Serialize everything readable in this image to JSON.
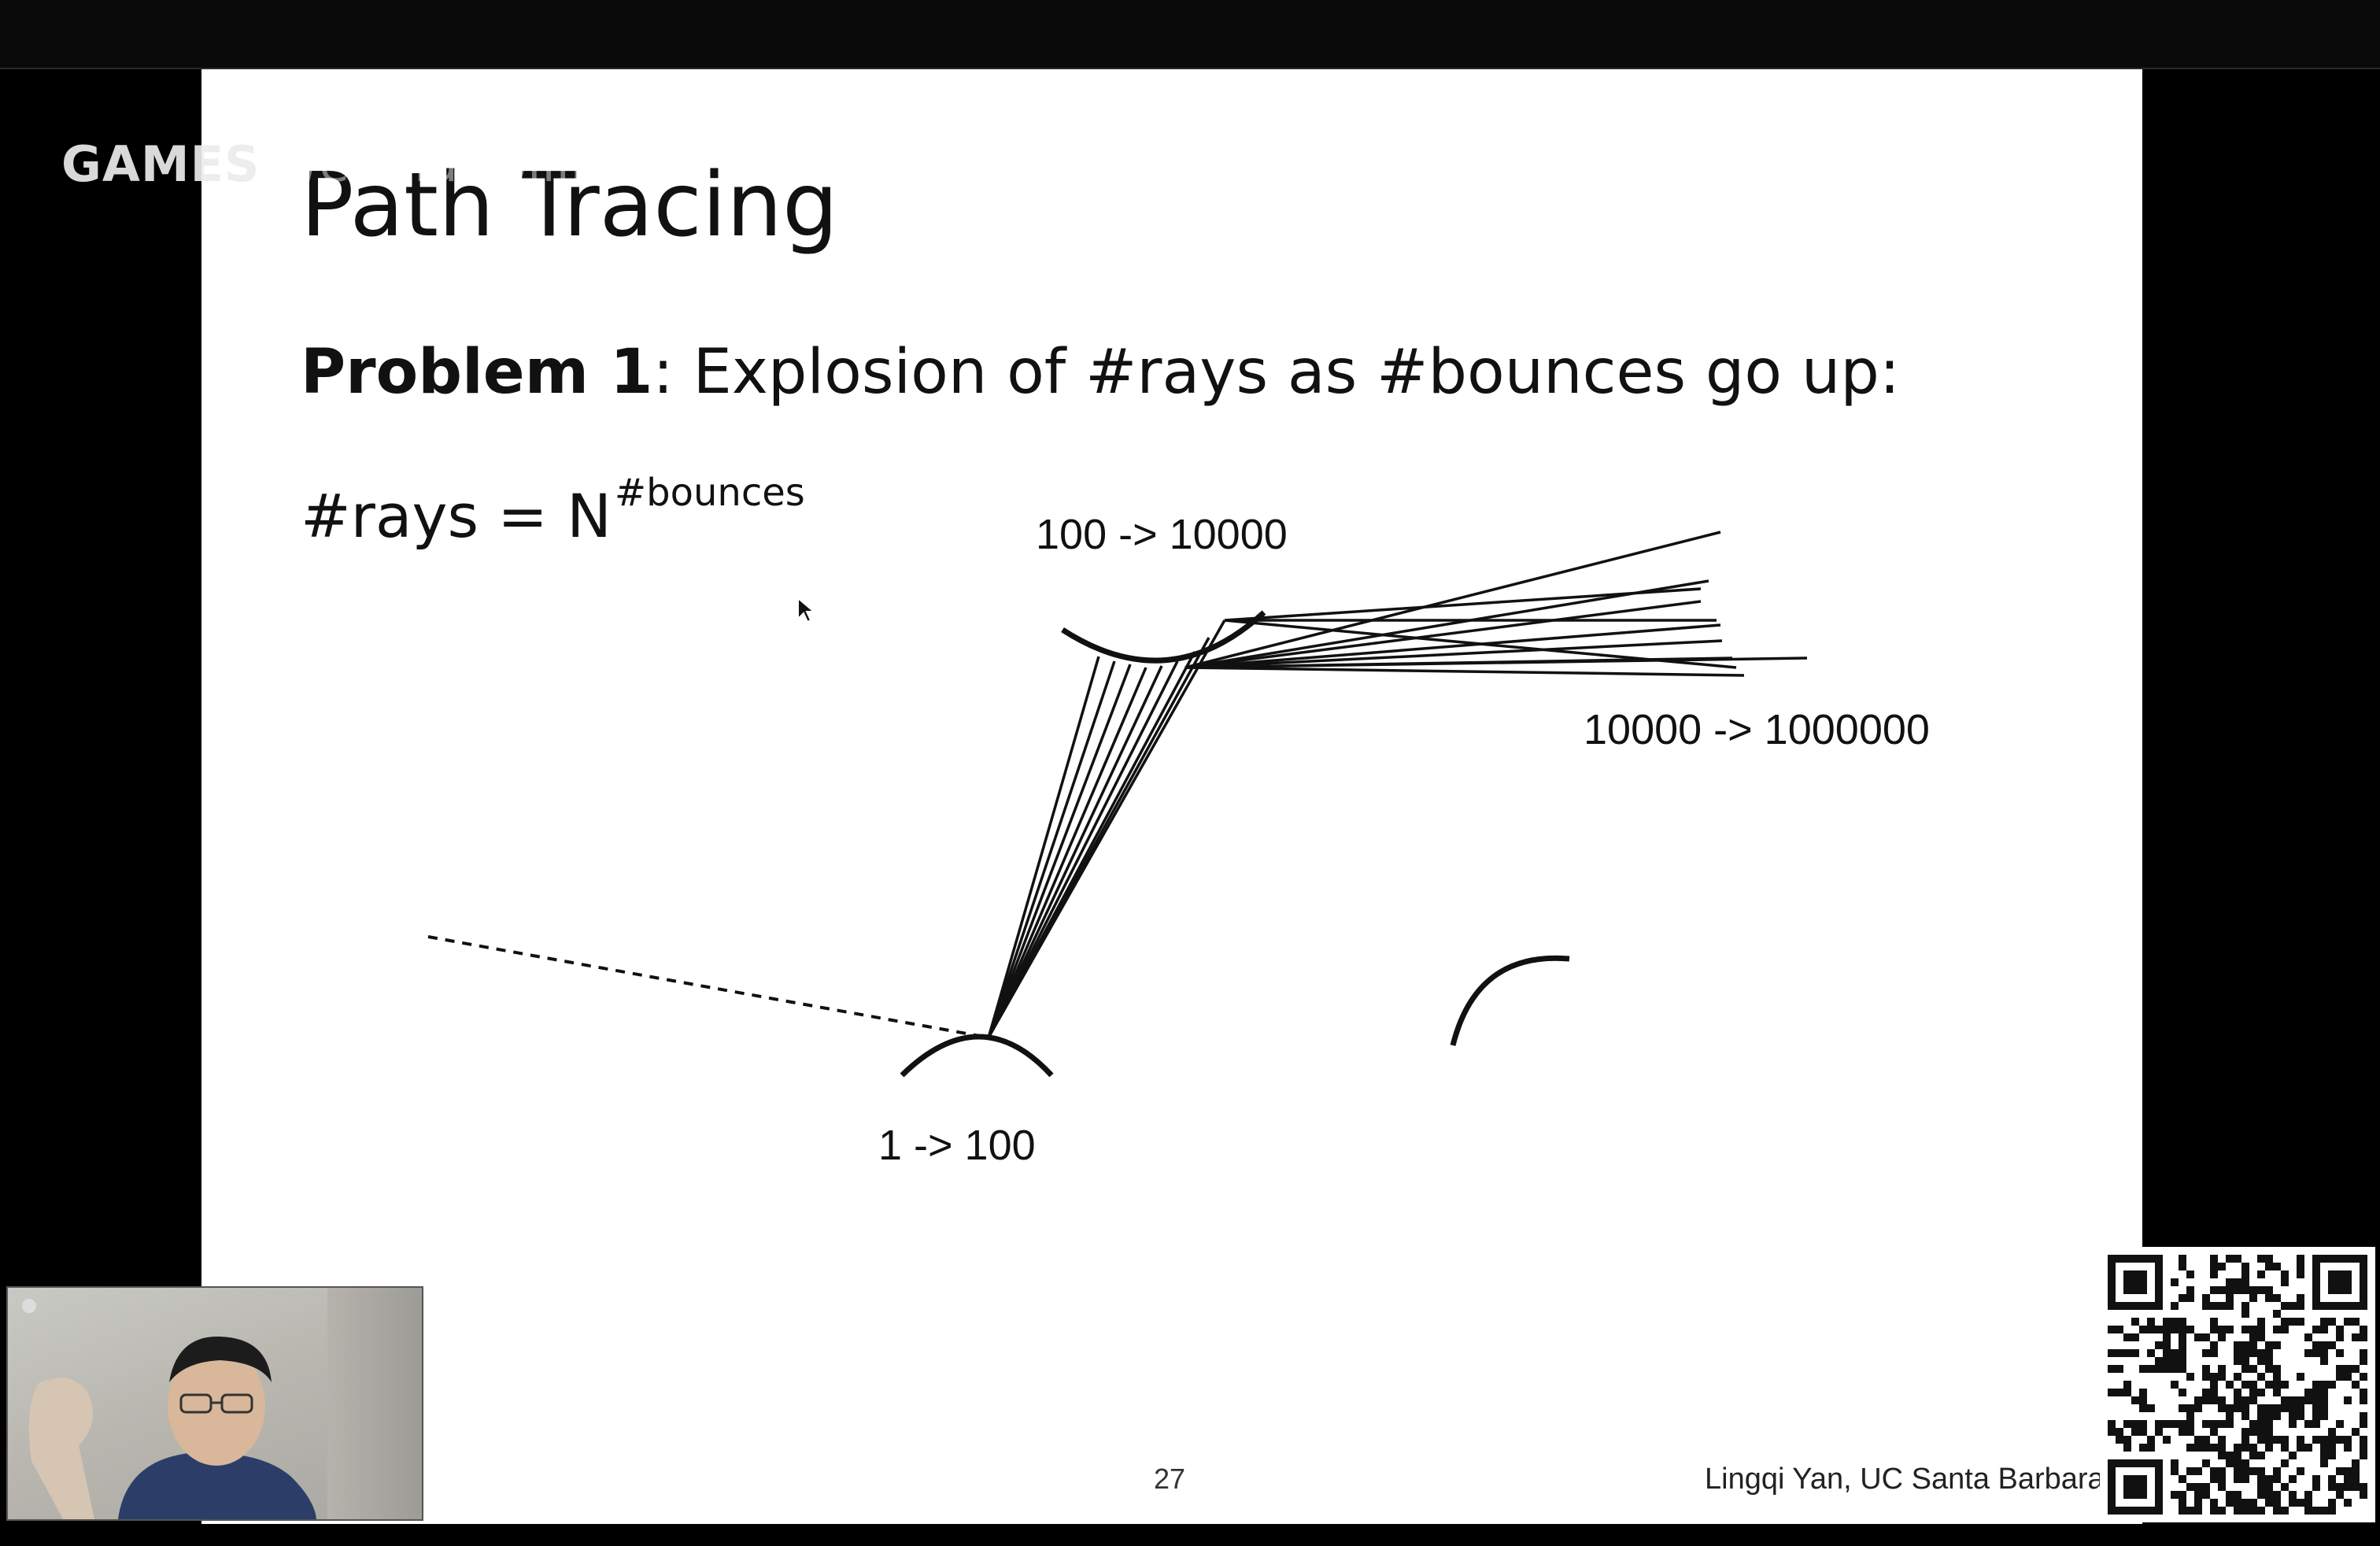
{
  "watermark": {
    "text": "GAMES",
    "tail": "-webinar bilibili"
  },
  "slide": {
    "title": "Path Tracing",
    "problem_label": "Problem 1",
    "problem_text": ": Explosion of #rays as #bounces go up:",
    "formula_base": "#rays = N",
    "formula_exponent": "#bounces",
    "labels": {
      "bounce1": "1 -> 100",
      "bounce2": "100 -> 10000",
      "bounce3": "10000 -> 1000000"
    },
    "page_number": "27",
    "author": "Lingqi Yan, UC Santa Barbara"
  },
  "overlays": {
    "webcam": "presenter-webcam",
    "qr_code": "qr-code-icon"
  }
}
